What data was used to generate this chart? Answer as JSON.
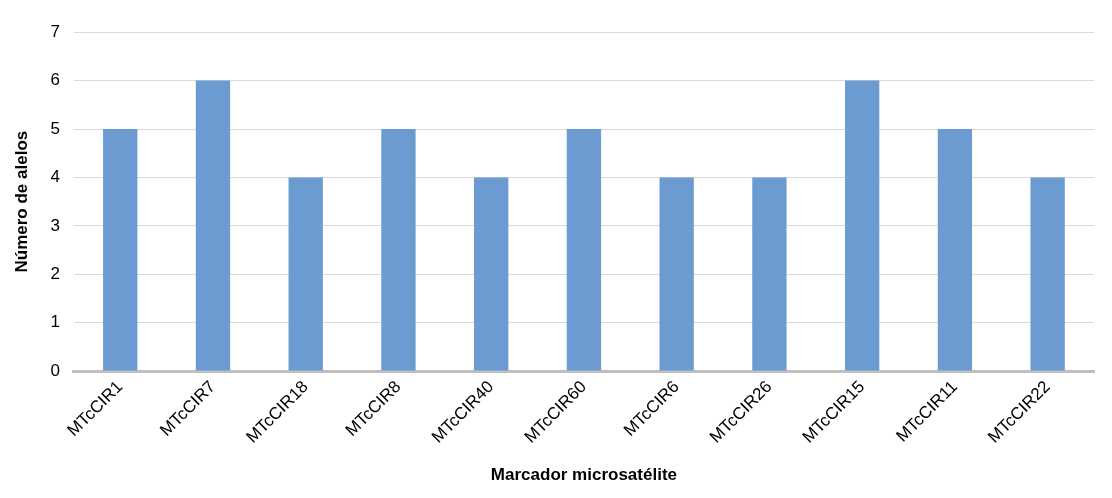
{
  "chart_data": {
    "type": "bar",
    "xlabel": "Marcador microsatélite",
    "ylabel": "Número de alelos",
    "categories": [
      "MTcCIR1",
      "MTcCIR7",
      "MTcCIR18",
      "MTcCIR8",
      "MTcCIR40",
      "MTcCIR60",
      "MTcCIR6",
      "MTcCIR26",
      "MTcCIR15",
      "MTcCIR11",
      "MTcCIR22"
    ],
    "values": [
      5,
      6,
      4,
      5,
      4,
      5,
      4,
      4,
      6,
      5,
      4
    ],
    "color": "#6c9bd2",
    "ylim": [
      0,
      7
    ],
    "yticks": [
      0,
      1,
      2,
      3,
      4,
      5,
      6,
      7
    ],
    "grid": "y",
    "legend": false
  }
}
